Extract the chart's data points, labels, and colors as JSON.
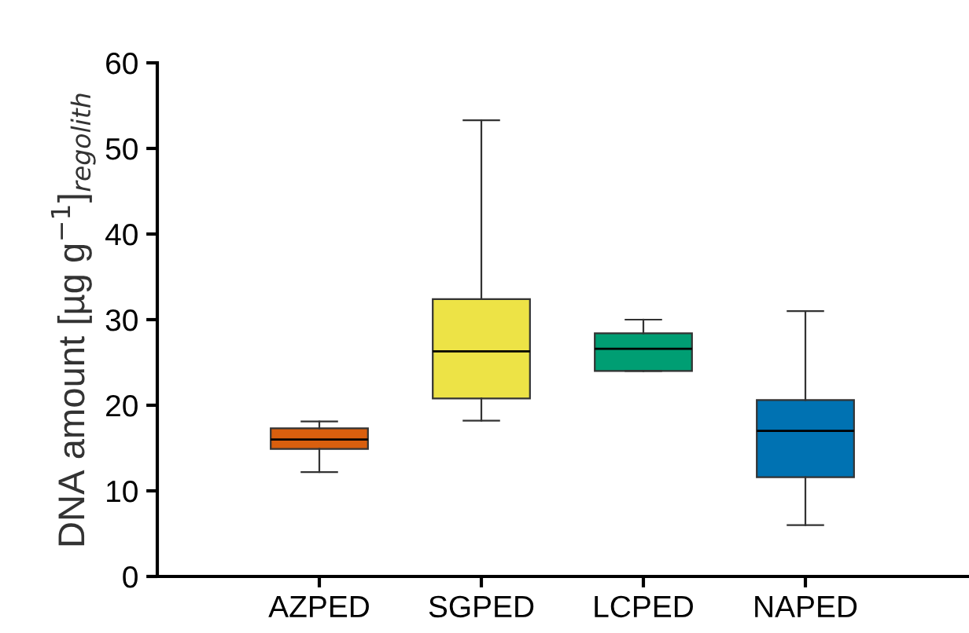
{
  "chart_data": {
    "type": "box",
    "ylabel": "DNA amount [µg g$^{−1}$]$_{regolith}$",
    "categories": [
      "AZPED",
      "SGPED",
      "LCPED",
      "NAPED"
    ],
    "colors": [
      "#d95f0e",
      "#ede346",
      "#009e73",
      "#0072b2"
    ],
    "boxes": [
      {
        "low": 12.2,
        "q1": 14.9,
        "median": 16.0,
        "q3": 17.3,
        "high": 18.1
      },
      {
        "low": 18.2,
        "q1": 20.8,
        "median": 26.3,
        "q3": 32.4,
        "high": 53.3
      },
      {
        "low": 24.0,
        "q1": 24.0,
        "median": 26.6,
        "q3": 28.4,
        "high": 30.0
      },
      {
        "low": 6.0,
        "q1": 11.6,
        "median": 17.0,
        "q3": 20.6,
        "high": 31.0
      }
    ],
    "ylim": [
      0,
      60
    ],
    "yticks": [
      0,
      10,
      20,
      30,
      40,
      50,
      60
    ],
    "grid": false,
    "legend": false
  }
}
